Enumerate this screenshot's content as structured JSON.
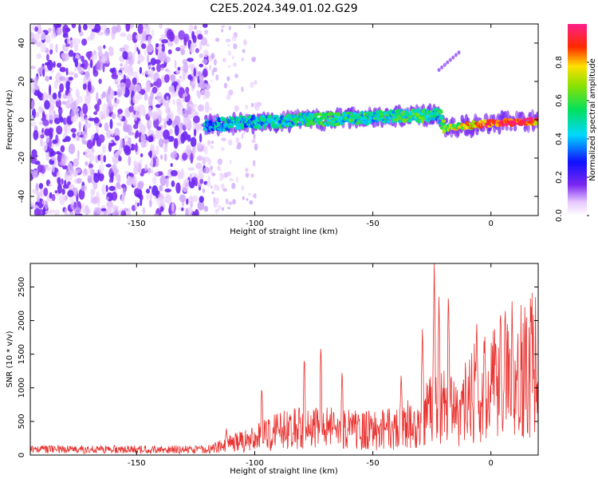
{
  "title": "C2E5.2024.349.01.02.G29",
  "chart_data": [
    {
      "type": "heatmap",
      "xlabel": "Height of straight line (km)",
      "ylabel": "Frequency (Hz)",
      "xlim": [
        -195,
        20
      ],
      "ylim": [
        -50,
        50
      ],
      "x_ticks": [
        "-150",
        "-100",
        "-50",
        "0"
      ],
      "x_tick_values": [
        -150,
        -100,
        -50,
        0
      ],
      "y_ticks": [
        "40",
        "20",
        "0",
        "-20",
        "-40"
      ],
      "y_tick_values": [
        40,
        20,
        0,
        -20,
        -40
      ],
      "colorbar": {
        "label": "Normalized spectral amplitude",
        "range": [
          0,
          1
        ],
        "ticks": [
          "0.0",
          "0.2",
          "0.4",
          "0.6",
          "0.8"
        ],
        "tick_values": [
          0.0,
          0.2,
          0.4,
          0.6,
          0.8
        ],
        "colormap": "rainbow (white-purple-blue-cyan-green-yellow-red-magenta)"
      },
      "ridge": {
        "x": [
          -120,
          -110,
          -100,
          -90,
          -80,
          -70,
          -60,
          -50,
          -40,
          -30,
          -22,
          -20,
          -10,
          0,
          10,
          20
        ],
        "freq": [
          -3,
          -2,
          -1,
          -1,
          0,
          0,
          1,
          1,
          2,
          2,
          3,
          -4,
          -3,
          -2,
          -1,
          -1
        ],
        "amplitude": [
          0.35,
          0.45,
          0.4,
          0.45,
          0.5,
          0.5,
          0.5,
          0.48,
          0.5,
          0.55,
          0.45,
          0.6,
          0.75,
          0.9,
          0.95,
          0.85
        ]
      },
      "noise_region": {
        "x_range": [
          -195,
          -120
        ],
        "freq_range": [
          -50,
          50
        ],
        "amplitude_range": [
          0.05,
          0.15
        ]
      }
    },
    {
      "type": "line",
      "xlabel": "Height of straight line (km)",
      "ylabel": "SNR (10 * v/v)",
      "xlim": [
        -195,
        20
      ],
      "ylim": [
        0,
        2850
      ],
      "x_ticks": [
        "-150",
        "-100",
        "-50",
        "0"
      ],
      "x_tick_values": [
        -150,
        -100,
        -50,
        0
      ],
      "y_ticks": [
        "0",
        "500",
        "1000",
        "1500",
        "2000",
        "2500"
      ],
      "y_tick_values": [
        0,
        500,
        1000,
        1500,
        2000,
        2500
      ],
      "color": "#e8312e",
      "envelope_x": [
        -195,
        -130,
        -118,
        -112,
        -100,
        -90,
        -80,
        -70,
        -60,
        -50,
        -40,
        -30,
        -25,
        -20,
        -15,
        -10,
        -5,
        0,
        5,
        10,
        15,
        20
      ],
      "envelope_y": [
        120,
        120,
        130,
        200,
        300,
        450,
        500,
        500,
        480,
        450,
        500,
        650,
        850,
        900,
        800,
        1050,
        1250,
        1350,
        1500,
        1650,
        1650,
        1700
      ],
      "peaks": [
        {
          "x": -112,
          "y": 400
        },
        {
          "x": -97,
          "y": 1050
        },
        {
          "x": -79,
          "y": 1520
        },
        {
          "x": -72,
          "y": 1680
        },
        {
          "x": -63,
          "y": 1300
        },
        {
          "x": -38,
          "y": 1230
        },
        {
          "x": -29,
          "y": 1950
        },
        {
          "x": -24,
          "y": 2850
        },
        {
          "x": -22,
          "y": 2400
        },
        {
          "x": -18,
          "y": 2480
        },
        {
          "x": -6,
          "y": 1950
        },
        {
          "x": 2,
          "y": 1800
        },
        {
          "x": 6,
          "y": 2280
        },
        {
          "x": 9,
          "y": 2100
        },
        {
          "x": 17,
          "y": 2300
        }
      ],
      "dips": [
        {
          "x": 5,
          "y": 730
        },
        {
          "x": 12,
          "y": 480
        }
      ]
    }
  ]
}
